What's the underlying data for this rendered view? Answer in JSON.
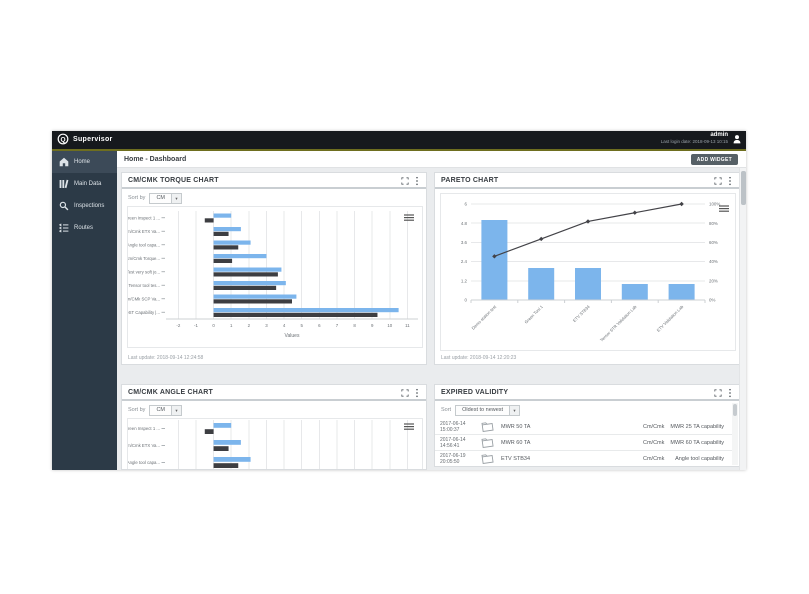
{
  "header": {
    "brand": "Supervisor",
    "user": "admin",
    "last_login": "Last login date: 2018-09-13 10:15"
  },
  "breadcrumb": "Home - Dashboard",
  "add_widget_label": "ADD WIDGET",
  "sidebar": {
    "items": [
      {
        "label": "Home",
        "icon": "home-icon",
        "active": true
      },
      {
        "label": "Main Data",
        "icon": "columns-icon",
        "active": false
      },
      {
        "label": "Inspections",
        "icon": "magnifier-icon",
        "active": false
      },
      {
        "label": "Routes",
        "icon": "routes-icon",
        "active": false
      }
    ]
  },
  "colors": {
    "accent_line": "#6e6e1f",
    "bar_blue": "#7cb5ec",
    "bar_dark": "#3d3e42",
    "line_dark": "#434348"
  },
  "panels": {
    "torque": {
      "title": "CM/CMK TORQUE CHART",
      "sort_label": "Sort by",
      "sort_value": "CM",
      "last_update": "Last update: 2018-09-14 12:24:58"
    },
    "pareto": {
      "title": "PARETO CHART",
      "last_update": "Last update: 2018-09-14 12:20:23"
    },
    "angle": {
      "title": "CM/CMK ANGLE CHART",
      "sort_label": "Sort by",
      "sort_value": "CM"
    },
    "expired": {
      "title": "EXPIRED VALIDITY",
      "sort_label": "Sort",
      "sort_value": "Oldest to newest",
      "rows": [
        {
          "date": "2017-06-14",
          "time": "15:00:37",
          "tool": "MWR 50 TA",
          "type": "Cm/Cmk",
          "capability": "MWR 25 TA capability"
        },
        {
          "date": "2017-06-14",
          "time": "14:56:41",
          "tool": "MWR 60 TA",
          "type": "Cm/Cmk",
          "capability": "MWR 60 TA capability"
        },
        {
          "date": "2017-06-19",
          "time": "20:05:50",
          "tool": "ETV STB34",
          "type": "Cm/Cmk",
          "capability": "Angle tool capability"
        }
      ]
    }
  },
  "chart_data": [
    {
      "id": "torque",
      "type": "bar",
      "orientation": "horizontal",
      "title": "CM/CMK TORQUE CHART",
      "categories": [
        "Green Inspect 1 ...",
        "Cm/Cmk ETX Va...",
        "Angle tool capa...",
        "Cm/Cmk Torque...",
        "Test very soft jo...",
        "Tensor tool tes...",
        "Cm/CMk SCP Va...",
        "QST Capability |..."
      ],
      "series": [
        {
          "name": "Cm",
          "color": "#7cb5ec",
          "values": [
            1.0,
            1.55,
            2.1,
            3.0,
            3.85,
            4.1,
            4.7,
            10.5
          ]
        },
        {
          "name": "Cmk",
          "color": "#3d3e42",
          "values": [
            -0.5,
            0.85,
            1.4,
            1.05,
            3.65,
            3.55,
            4.45,
            9.3
          ]
        }
      ],
      "xlabel": "Values",
      "xlim": [
        -2,
        11
      ],
      "xticks": [
        -2,
        -1,
        0,
        1,
        2,
        3,
        4,
        5,
        6,
        7,
        8,
        9,
        10,
        11
      ],
      "grid": true,
      "legend": "none"
    },
    {
      "id": "pareto",
      "type": "pareto",
      "title": "PARETO CHART",
      "categories": [
        "Demo station test",
        "Green Tool 1",
        "ETV ST834",
        "Tensor STR Validation Lab",
        "ETV Validation Lab"
      ],
      "bar_values": [
        5,
        2,
        2,
        1,
        1
      ],
      "bar_color": "#7cb5ec",
      "line_values_pct": [
        45.5,
        63.6,
        81.8,
        90.9,
        100
      ],
      "line_color": "#434348",
      "ylim_left": [
        0,
        6
      ],
      "yticks_left": [
        0,
        1.2,
        2.4,
        3.6,
        4.8,
        6
      ],
      "ylim_right_pct": [
        0,
        100
      ],
      "yticks_right": [
        "0%",
        "20%",
        "40%",
        "60%",
        "80%",
        "100%"
      ],
      "grid": true,
      "legend": "none"
    },
    {
      "id": "angle",
      "type": "bar",
      "orientation": "horizontal",
      "title": "CM/CMK ANGLE CHART",
      "categories": [
        "Green Inspect 1 ...",
        "Cm/Cmk ETX Va...",
        "Angle tool capa..."
      ],
      "series": [
        {
          "name": "Cm",
          "color": "#7cb5ec",
          "values": [
            1.0,
            1.55,
            2.1
          ]
        },
        {
          "name": "Cmk",
          "color": "#3d3e42",
          "values": [
            -0.5,
            0.85,
            1.4
          ]
        }
      ],
      "xlabel": "Values",
      "xlim": [
        -2,
        11
      ],
      "xticks": [
        -2,
        -1,
        0,
        1,
        2,
        3,
        4,
        5,
        6,
        7,
        8,
        9,
        10,
        11
      ],
      "grid": true,
      "legend": "none",
      "clipped": true
    }
  ]
}
